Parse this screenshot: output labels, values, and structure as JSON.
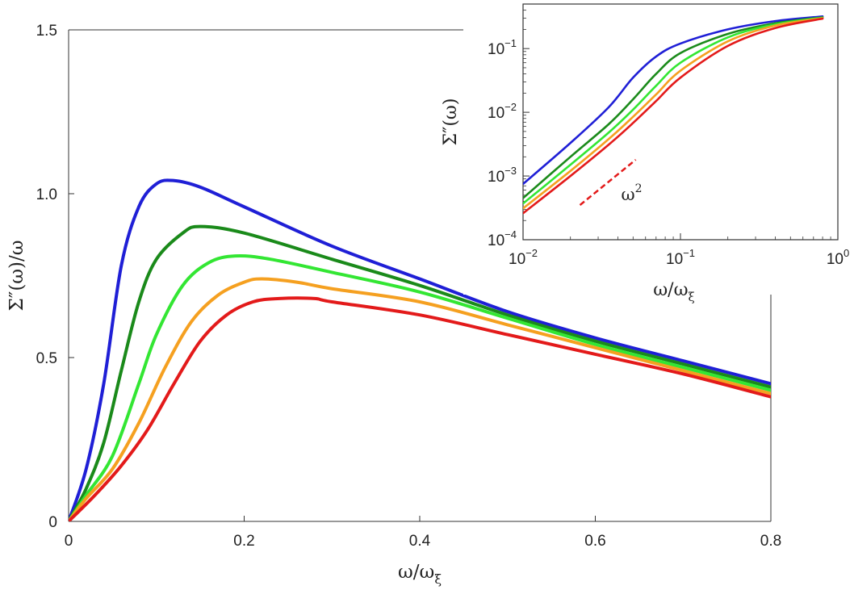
{
  "chart_data": [
    {
      "type": "line",
      "xlabel": "ω/ω",
      "xlabel_sub": "ξ",
      "ylabel": "Σ″(ω)/ω",
      "xlim": [
        0,
        0.8
      ],
      "ylim": [
        0,
        1.5
      ],
      "x_ticks": [
        0,
        0.2,
        0.4,
        0.6,
        0.8
      ],
      "x_tick_labels": [
        "0",
        "0.2",
        "0.4",
        "0.6",
        "0.8"
      ],
      "y_ticks": [
        0,
        0.5,
        1.0,
        1.5
      ],
      "y_tick_labels": [
        "0",
        "0.5",
        "1.0",
        "1.5"
      ],
      "grid": false,
      "series": [
        {
          "color": "#1f1fd6",
          "points": [
            [
              0,
              0
            ],
            [
              0.02,
              0.16
            ],
            [
              0.04,
              0.42
            ],
            [
              0.06,
              0.78
            ],
            [
              0.08,
              0.96
            ],
            [
              0.1,
              1.03
            ],
            [
              0.12,
              1.04
            ],
            [
              0.15,
              1.02
            ],
            [
              0.2,
              0.96
            ],
            [
              0.3,
              0.84
            ],
            [
              0.4,
              0.74
            ],
            [
              0.5,
              0.64
            ],
            [
              0.6,
              0.56
            ],
            [
              0.7,
              0.49
            ],
            [
              0.8,
              0.42
            ]
          ]
        },
        {
          "color": "#1a8a1a",
          "points": [
            [
              0,
              0
            ],
            [
              0.02,
              0.1
            ],
            [
              0.04,
              0.24
            ],
            [
              0.06,
              0.46
            ],
            [
              0.08,
              0.67
            ],
            [
              0.1,
              0.8
            ],
            [
              0.13,
              0.88
            ],
            [
              0.15,
              0.9
            ],
            [
              0.2,
              0.88
            ],
            [
              0.3,
              0.8
            ],
            [
              0.4,
              0.72
            ],
            [
              0.5,
              0.63
            ],
            [
              0.6,
              0.55
            ],
            [
              0.7,
              0.48
            ],
            [
              0.8,
              0.41
            ]
          ]
        },
        {
          "color": "#33e633",
          "points": [
            [
              0,
              0
            ],
            [
              0.02,
              0.08
            ],
            [
              0.05,
              0.2
            ],
            [
              0.08,
              0.42
            ],
            [
              0.1,
              0.57
            ],
            [
              0.13,
              0.72
            ],
            [
              0.16,
              0.79
            ],
            [
              0.19,
              0.81
            ],
            [
              0.23,
              0.8
            ],
            [
              0.3,
              0.76
            ],
            [
              0.4,
              0.7
            ],
            [
              0.5,
              0.62
            ],
            [
              0.6,
              0.54
            ],
            [
              0.7,
              0.47
            ],
            [
              0.8,
              0.4
            ]
          ]
        },
        {
          "color": "#f5a020",
          "points": [
            [
              0,
              0
            ],
            [
              0.02,
              0.07
            ],
            [
              0.05,
              0.16
            ],
            [
              0.08,
              0.3
            ],
            [
              0.11,
              0.47
            ],
            [
              0.14,
              0.61
            ],
            [
              0.17,
              0.69
            ],
            [
              0.2,
              0.73
            ],
            [
              0.22,
              0.74
            ],
            [
              0.26,
              0.73
            ],
            [
              0.3,
              0.71
            ],
            [
              0.4,
              0.67
            ],
            [
              0.5,
              0.6
            ],
            [
              0.6,
              0.53
            ],
            [
              0.7,
              0.46
            ],
            [
              0.8,
              0.39
            ]
          ]
        },
        {
          "color": "#e31a1a",
          "points": [
            [
              0,
              0
            ],
            [
              0.03,
              0.08
            ],
            [
              0.06,
              0.17
            ],
            [
              0.09,
              0.28
            ],
            [
              0.12,
              0.42
            ],
            [
              0.15,
              0.55
            ],
            [
              0.18,
              0.63
            ],
            [
              0.21,
              0.67
            ],
            [
              0.24,
              0.68
            ],
            [
              0.28,
              0.68
            ],
            [
              0.3,
              0.67
            ],
            [
              0.4,
              0.63
            ],
            [
              0.5,
              0.57
            ],
            [
              0.6,
              0.51
            ],
            [
              0.7,
              0.45
            ],
            [
              0.8,
              0.38
            ]
          ]
        }
      ]
    },
    {
      "type": "line",
      "inset": true,
      "xlabel": "ω/ω",
      "xlabel_sub": "ξ",
      "ylabel": "Σ″(ω)",
      "xscale": "log",
      "yscale": "log",
      "xlim": [
        0.01,
        1
      ],
      "ylim": [
        0.0001,
        0.5
      ],
      "x_ticks": [
        0.01,
        0.1,
        1
      ],
      "x_tick_labels": [
        {
          "base": "10",
          "exp": "−2"
        },
        {
          "base": "10",
          "exp": "−1"
        },
        {
          "base": "10",
          "exp": "0"
        }
      ],
      "y_ticks": [
        0.0001,
        0.001,
        0.01,
        0.1
      ],
      "y_tick_labels": [
        {
          "base": "10",
          "exp": "−4"
        },
        {
          "base": "10",
          "exp": "−3"
        },
        {
          "base": "10",
          "exp": "−2"
        },
        {
          "base": "10",
          "exp": "−1"
        }
      ],
      "annotation": {
        "text": "ω",
        "sup": "2",
        "color": "#e31a1a",
        "line_from": [
          0.023,
          0.00035
        ],
        "line_to": [
          0.052,
          0.0018
        ]
      },
      "grid": false,
      "series": [
        {
          "color": "#1f1fd6",
          "points": [
            [
              0.01,
              0.00075
            ],
            [
              0.02,
              0.0033
            ],
            [
              0.035,
              0.012
            ],
            [
              0.05,
              0.035
            ],
            [
              0.07,
              0.075
            ],
            [
              0.1,
              0.12
            ],
            [
              0.2,
              0.2
            ],
            [
              0.4,
              0.27
            ],
            [
              0.8,
              0.32
            ]
          ]
        },
        {
          "color": "#1a8a1a",
          "points": [
            [
              0.01,
              0.00045
            ],
            [
              0.02,
              0.002
            ],
            [
              0.035,
              0.0065
            ],
            [
              0.05,
              0.016
            ],
            [
              0.07,
              0.04
            ],
            [
              0.1,
              0.085
            ],
            [
              0.2,
              0.17
            ],
            [
              0.4,
              0.25
            ],
            [
              0.8,
              0.31
            ]
          ]
        },
        {
          "color": "#33e633",
          "points": [
            [
              0.01,
              0.00037
            ],
            [
              0.02,
              0.0015
            ],
            [
              0.035,
              0.0048
            ],
            [
              0.05,
              0.011
            ],
            [
              0.07,
              0.026
            ],
            [
              0.1,
              0.06
            ],
            [
              0.2,
              0.15
            ],
            [
              0.4,
              0.24
            ],
            [
              0.8,
              0.305
            ]
          ]
        },
        {
          "color": "#f5a020",
          "points": [
            [
              0.01,
              0.00031
            ],
            [
              0.02,
              0.0012
            ],
            [
              0.035,
              0.0038
            ],
            [
              0.05,
              0.0085
            ],
            [
              0.07,
              0.019
            ],
            [
              0.1,
              0.045
            ],
            [
              0.2,
              0.13
            ],
            [
              0.4,
              0.23
            ],
            [
              0.8,
              0.3
            ]
          ]
        },
        {
          "color": "#e31a1a",
          "points": [
            [
              0.01,
              0.00026
            ],
            [
              0.02,
              0.001
            ],
            [
              0.035,
              0.0031
            ],
            [
              0.05,
              0.0068
            ],
            [
              0.07,
              0.015
            ],
            [
              0.1,
              0.035
            ],
            [
              0.2,
              0.11
            ],
            [
              0.4,
              0.21
            ],
            [
              0.8,
              0.295
            ]
          ]
        }
      ]
    }
  ]
}
